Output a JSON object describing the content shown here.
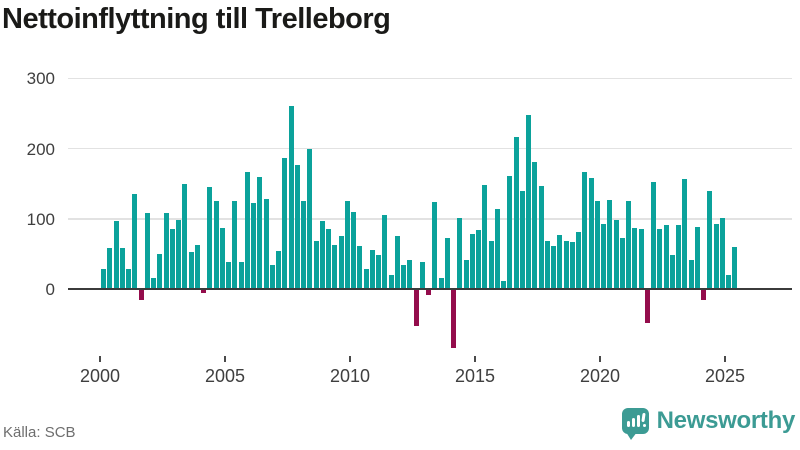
{
  "header": {
    "title": "Nettoinflyttning till Trelleborg"
  },
  "footer": {
    "source": "Källa: SCB",
    "brand": "Newsworthy"
  },
  "icons": {
    "brand_logo": "newsworthy-bar-chart-speech-bubble-icon"
  },
  "colors": {
    "bar_positive": "#0ba29b",
    "bar_negative": "#940d4c",
    "brand_teal": "#3c9b94",
    "gridline": "#e2e2e2",
    "zero_axis": "#3b3b3b",
    "title_text": "#1a1a18",
    "axis_text": "#3f3f3f",
    "source_text": "#6e6e6e"
  },
  "chart_data": {
    "type": "bar",
    "title": "Nettoinflyttning till Trelleborg",
    "xlabel": "",
    "ylabel": "",
    "frequency": "quarterly",
    "x_start": "2000-Q1",
    "x_end": "2025-Q2",
    "values": [
      29,
      58,
      97,
      58,
      29,
      135,
      -16,
      108,
      16,
      50,
      108,
      86,
      98,
      149,
      53,
      63,
      -5,
      145,
      125,
      87,
      38,
      125,
      38,
      166,
      123,
      159,
      128,
      34,
      54,
      187,
      260,
      176,
      125,
      200,
      69,
      97,
      86,
      62,
      76,
      125,
      110,
      61,
      29,
      55,
      49,
      105,
      20,
      75,
      34,
      42,
      -53,
      38,
      -9,
      124,
      16,
      73,
      -84,
      101,
      41,
      78,
      84,
      148,
      69,
      114,
      12,
      161,
      216,
      139,
      248,
      181,
      147,
      69,
      61,
      77,
      69,
      67,
      81,
      167,
      158,
      125,
      92,
      127,
      98,
      73,
      125,
      87,
      85,
      -48,
      153,
      86,
      91,
      48,
      91,
      156,
      41,
      89,
      -16,
      139,
      93,
      101,
      20,
      60
    ],
    "x_tick_years": [
      2000,
      2005,
      2010,
      2015,
      2020,
      2025
    ],
    "y_ticks": [
      0,
      100,
      200,
      300
    ],
    "ylim": [
      -95,
      310
    ],
    "grid": true,
    "legend": false,
    "bar_color_positive": "#0ba29b",
    "bar_color_negative": "#940d4c",
    "source": "Källa: SCB"
  }
}
